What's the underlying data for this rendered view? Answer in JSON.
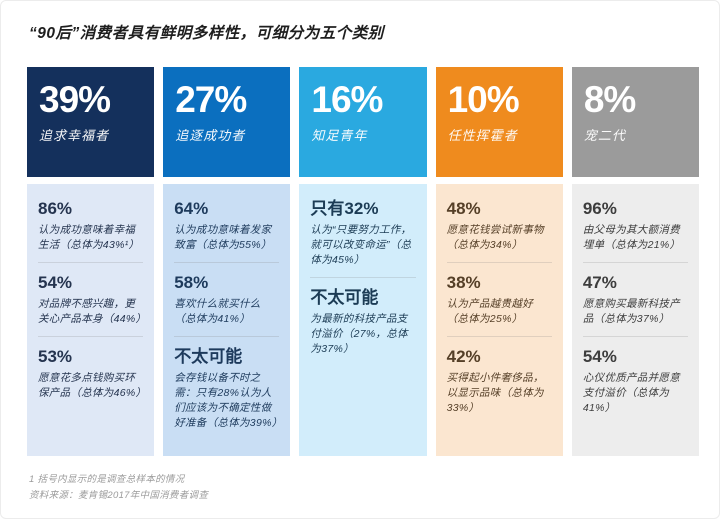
{
  "title": "“90后”消费者具有鲜明多样性，可细分为五个类别",
  "footnote": "1 括号内显示的是调查总样本的情况",
  "source": "资料来源：麦肯锡2017年中国消费者调查",
  "columns": [
    {
      "percent": "39%",
      "label": "追求幸福者",
      "header_color": "#14305c",
      "body_color": "#dfe8f6",
      "text_color": "#25344f",
      "stats": [
        {
          "value": "86%",
          "desc": "认为成功意味着幸福生活（总体为43%¹）"
        },
        {
          "value": "54%",
          "desc": "对品牌不感兴趣，更关心产品本身（44%）"
        },
        {
          "value": "53%",
          "desc": "愿意花多点钱购买环保产品（总体为46%）"
        }
      ]
    },
    {
      "percent": "27%",
      "label": "追逐成功者",
      "header_color": "#0b6fbf",
      "body_color": "#c9def4",
      "text_color": "#1d3a5c",
      "stats": [
        {
          "value": "64%",
          "desc": "认为成功意味着发家致富（总体为55%）"
        },
        {
          "value": "58%",
          "desc": "喜欢什么就买什么（总体为41%）"
        },
        {
          "value": "不太可能",
          "desc": "会存钱以备不时之需：只有28%认为人们应该为不确定性做好准备（总体为39%）"
        }
      ]
    },
    {
      "percent": "16%",
      "label": "知足青年",
      "header_color": "#2aa9e0",
      "body_color": "#d2edfb",
      "text_color": "#1c3c55",
      "stats": [
        {
          "value": "只有32%",
          "desc": "认为“只要努力工作，就可以改变命运”（总体为45%）"
        },
        {
          "value": "不太可能",
          "desc": "为最新的科技产品支付溢价（27%，总体为37%）"
        }
      ]
    },
    {
      "percent": "10%",
      "label": "任性挥霍者",
      "header_color": "#ef8b1e",
      "body_color": "#fbe6d0",
      "text_color": "#553f27",
      "stats": [
        {
          "value": "48%",
          "desc": "愿意花钱尝试新事物（总体为34%）"
        },
        {
          "value": "38%",
          "desc": "认为产品越贵越好（总体为25%）"
        },
        {
          "value": "42%",
          "desc": "买得起小件奢侈品，以显示品味（总体为33%）"
        }
      ]
    },
    {
      "percent": "8%",
      "label": "宠二代",
      "header_color": "#9b9b9b",
      "body_color": "#ededed",
      "text_color": "#3d3d3d",
      "stats": [
        {
          "value": "96%",
          "desc": "由父母为其大额消费埋单（总体为21%）"
        },
        {
          "value": "47%",
          "desc": "愿意购买最新科技产品（总体为37%）"
        },
        {
          "value": "54%",
          "desc": "心仪优质产品并愿意支付溢价（总体为41%）"
        }
      ]
    }
  ],
  "chart_data": {
    "type": "table",
    "title": "“90后”消费者具有鲜明多样性，可细分为五个类别",
    "categories": [
      "追求幸福者",
      "追逐成功者",
      "知足青年",
      "任性挥霍者",
      "宠二代"
    ],
    "values": [
      39,
      27,
      16,
      10,
      8
    ],
    "unit": "%",
    "series": [
      {
        "name": "追求幸福者",
        "values": [
          "86% 认为成功意味着幸福生活（总体为43%）",
          "54% 对品牌不感兴趣，更关心产品本身（44%）",
          "53% 愿意花多点钱购买环保产品（总体为46%）"
        ]
      },
      {
        "name": "追逐成功者",
        "values": [
          "64% 认为成功意味着发家致富（总体为55%）",
          "58% 喜欢什么就买什么（总体为41%）",
          "不太可能 会存钱以备不时之需：只有28%认为人们应该为不确定性做好准备（总体为39%）"
        ]
      },
      {
        "name": "知足青年",
        "values": [
          "只有32% 认为“只要努力工作，就可以改变命运”（总体为45%）",
          "不太可能 为最新的科技产品支付溢价（27%，总体为37%）"
        ]
      },
      {
        "name": "任性挥霍者",
        "values": [
          "48% 愿意花钱尝试新事物（总体为34%）",
          "38% 认为产品越贵越好（总体为25%）",
          "42% 买得起小件奢侈品，以显示品味（总体为33%）"
        ]
      },
      {
        "name": "宠二代",
        "values": [
          "96% 由父母为其大额消费埋单（总体为21%）",
          "47% 愿意购买最新科技产品（总体为37%）",
          "54% 心仪优质产品并愿意支付溢价（总体为41%）"
        ]
      }
    ]
  }
}
